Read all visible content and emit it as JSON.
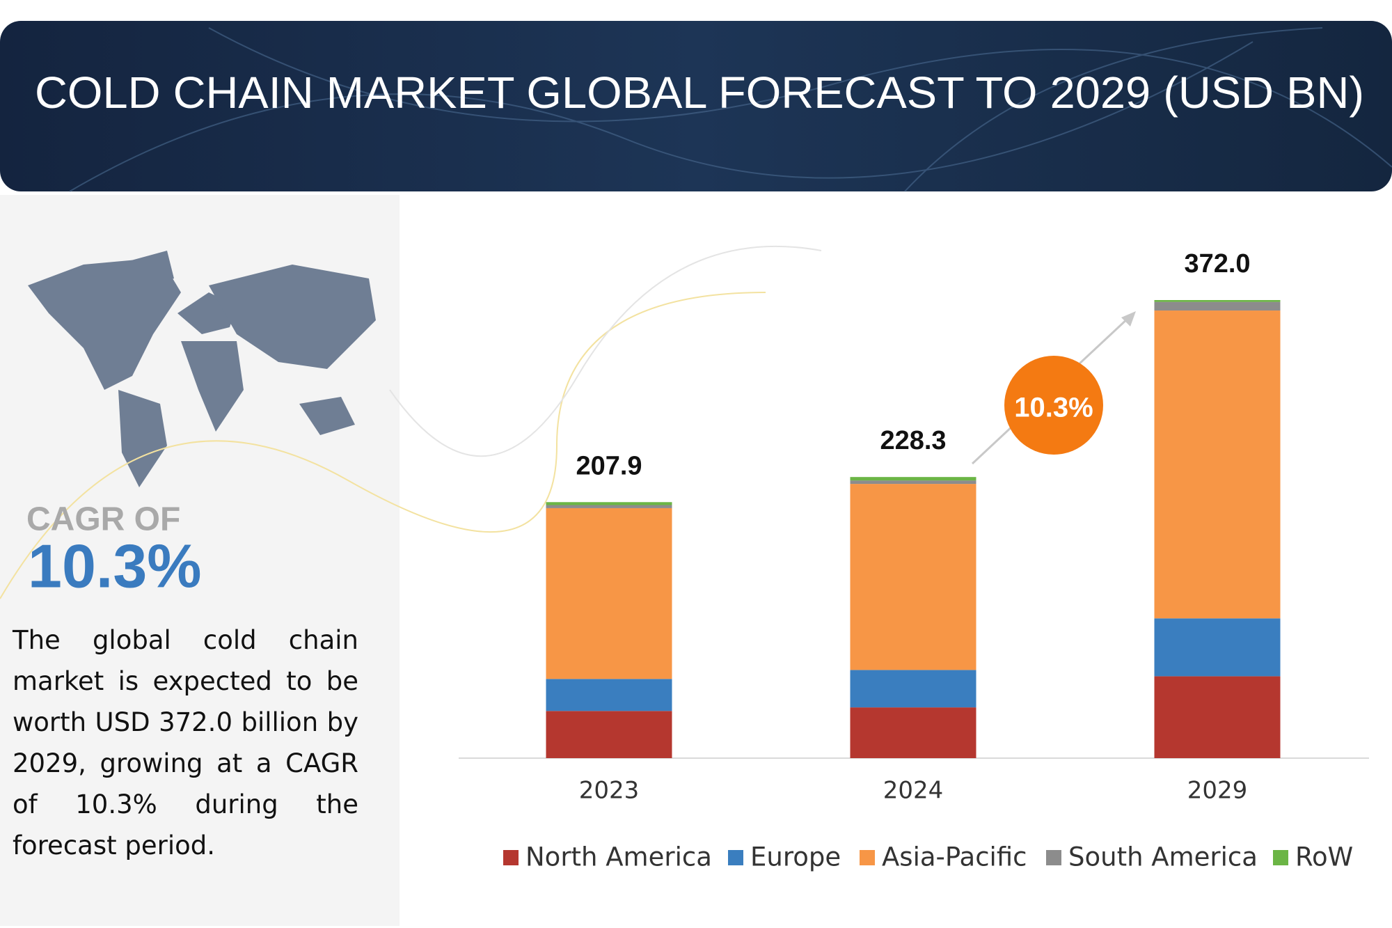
{
  "chart_data": {
    "type": "stacked_bar",
    "title": "COLD CHAIN MARKET GLOBAL FORECAST TO 2029 (USD BN)",
    "categories": [
      "2023",
      "2024",
      "2029"
    ],
    "series": [
      {
        "name": "North America",
        "color": "#b5372f",
        "values": [
          38.3,
          41.2,
          66.5
        ]
      },
      {
        "name": "Europe",
        "color": "#3a7ebf",
        "values": [
          26,
          30.4,
          47
        ]
      },
      {
        "name": "Asia-Pacific",
        "color": "#f79646",
        "values": [
          138.7,
          151.1,
          250
        ]
      },
      {
        "name": "South America",
        "color": "#8c8c8c",
        "values": [
          2.5,
          2.8,
          7
        ]
      },
      {
        "name": "RoW",
        "color": "#6bb545",
        "values": [
          2.4,
          2.8,
          1.5
        ]
      }
    ],
    "totals": [
      207.9,
      228.3,
      372
    ],
    "total_labels": [
      "207.9",
      "228.3",
      "372.0"
    ],
    "annotation": "10.3%"
  },
  "sidebar": {
    "cagr_label": "CAGR OF",
    "cagr_value": "10.3%",
    "description": "The global cold chain market is expected to be worth USD 372.0 billion by 2029, growing at a CAGR of 10.3% during the forecast period."
  }
}
